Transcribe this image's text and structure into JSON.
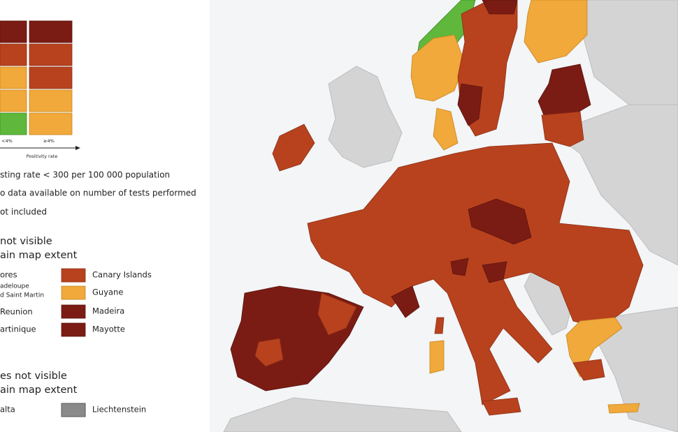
{
  "legend": {
    "matrix": {
      "col_labels": [
        "<4%",
        "≥4%"
      ],
      "axis_title": "Positivity rate"
    },
    "notes": [
      "sting rate < 300 per 100 000 population",
      "o data available on number of tests performed",
      "ot included"
    ],
    "regions_section": {
      "title_lines": [
        "not visible",
        "ain map extent"
      ],
      "left": [
        "ores",
        "adeloupe",
        "d Saint Martin",
        "Reunion",
        "artinique"
      ],
      "right": [
        "Canary Islands",
        "Guyane",
        "Madeira",
        "Mayotte"
      ]
    },
    "countries_section": {
      "title_lines": [
        "es not visible",
        "ain map extent"
      ],
      "items": [
        "alta",
        "Liechtenstein"
      ]
    }
  }
}
